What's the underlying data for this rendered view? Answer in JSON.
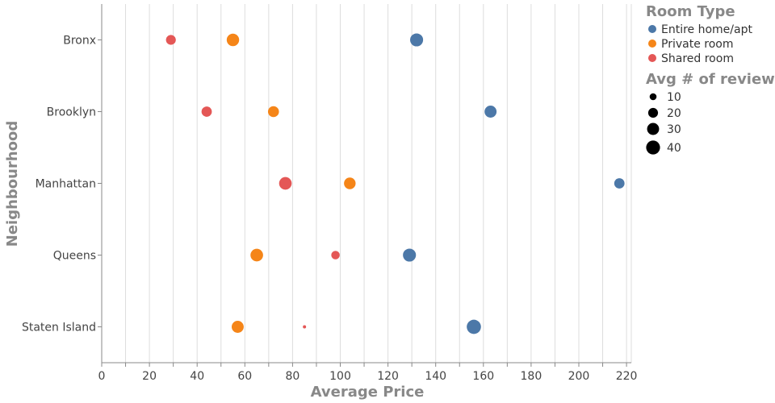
{
  "chart_data": {
    "type": "scatter",
    "xlabel": "Average Price",
    "ylabel": "Neighbourhood",
    "xlim": [
      0,
      222
    ],
    "xticks": [
      0,
      20,
      40,
      60,
      80,
      100,
      120,
      140,
      160,
      180,
      200,
      220
    ],
    "categories": [
      "Bronx",
      "Brooklyn",
      "Manhattan",
      "Queens",
      "Staten Island"
    ],
    "grid": "vertical",
    "legend_position": "right",
    "color_legend": {
      "title": "Room Type",
      "entries": [
        {
          "label": "Entire home/apt",
          "color": "#4c78a8"
        },
        {
          "label": "Private room",
          "color": "#f58518"
        },
        {
          "label": "Shared room",
          "color": "#e45756"
        }
      ]
    },
    "size_legend": {
      "title": "Avg # of reviews",
      "entries": [
        10,
        20,
        30,
        40
      ]
    },
    "series": [
      {
        "name": "Entire home/apt",
        "color": "#4c78a8",
        "points": [
          {
            "y": "Bronx",
            "x": 132,
            "reviews": 35
          },
          {
            "y": "Brooklyn",
            "x": 163,
            "reviews": 30
          },
          {
            "y": "Manhattan",
            "x": 217,
            "reviews": 22
          },
          {
            "y": "Queens",
            "x": 129,
            "reviews": 35
          },
          {
            "y": "Staten Island",
            "x": 156,
            "reviews": 42
          }
        ]
      },
      {
        "name": "Private room",
        "color": "#f58518",
        "points": [
          {
            "y": "Bronx",
            "x": 55,
            "reviews": 32
          },
          {
            "y": "Brooklyn",
            "x": 72,
            "reviews": 25
          },
          {
            "y": "Manhattan",
            "x": 104,
            "reviews": 28
          },
          {
            "y": "Queens",
            "x": 65,
            "reviews": 33
          },
          {
            "y": "Staten Island",
            "x": 57,
            "reviews": 30
          }
        ]
      },
      {
        "name": "Shared room",
        "color": "#e45756",
        "points": [
          {
            "y": "Bronx",
            "x": 29,
            "reviews": 20
          },
          {
            "y": "Brooklyn",
            "x": 44,
            "reviews": 22
          },
          {
            "y": "Manhattan",
            "x": 77,
            "reviews": 33
          },
          {
            "y": "Queens",
            "x": 98,
            "reviews": 15
          },
          {
            "y": "Staten Island",
            "x": 85,
            "reviews": 2
          }
        ]
      }
    ]
  }
}
